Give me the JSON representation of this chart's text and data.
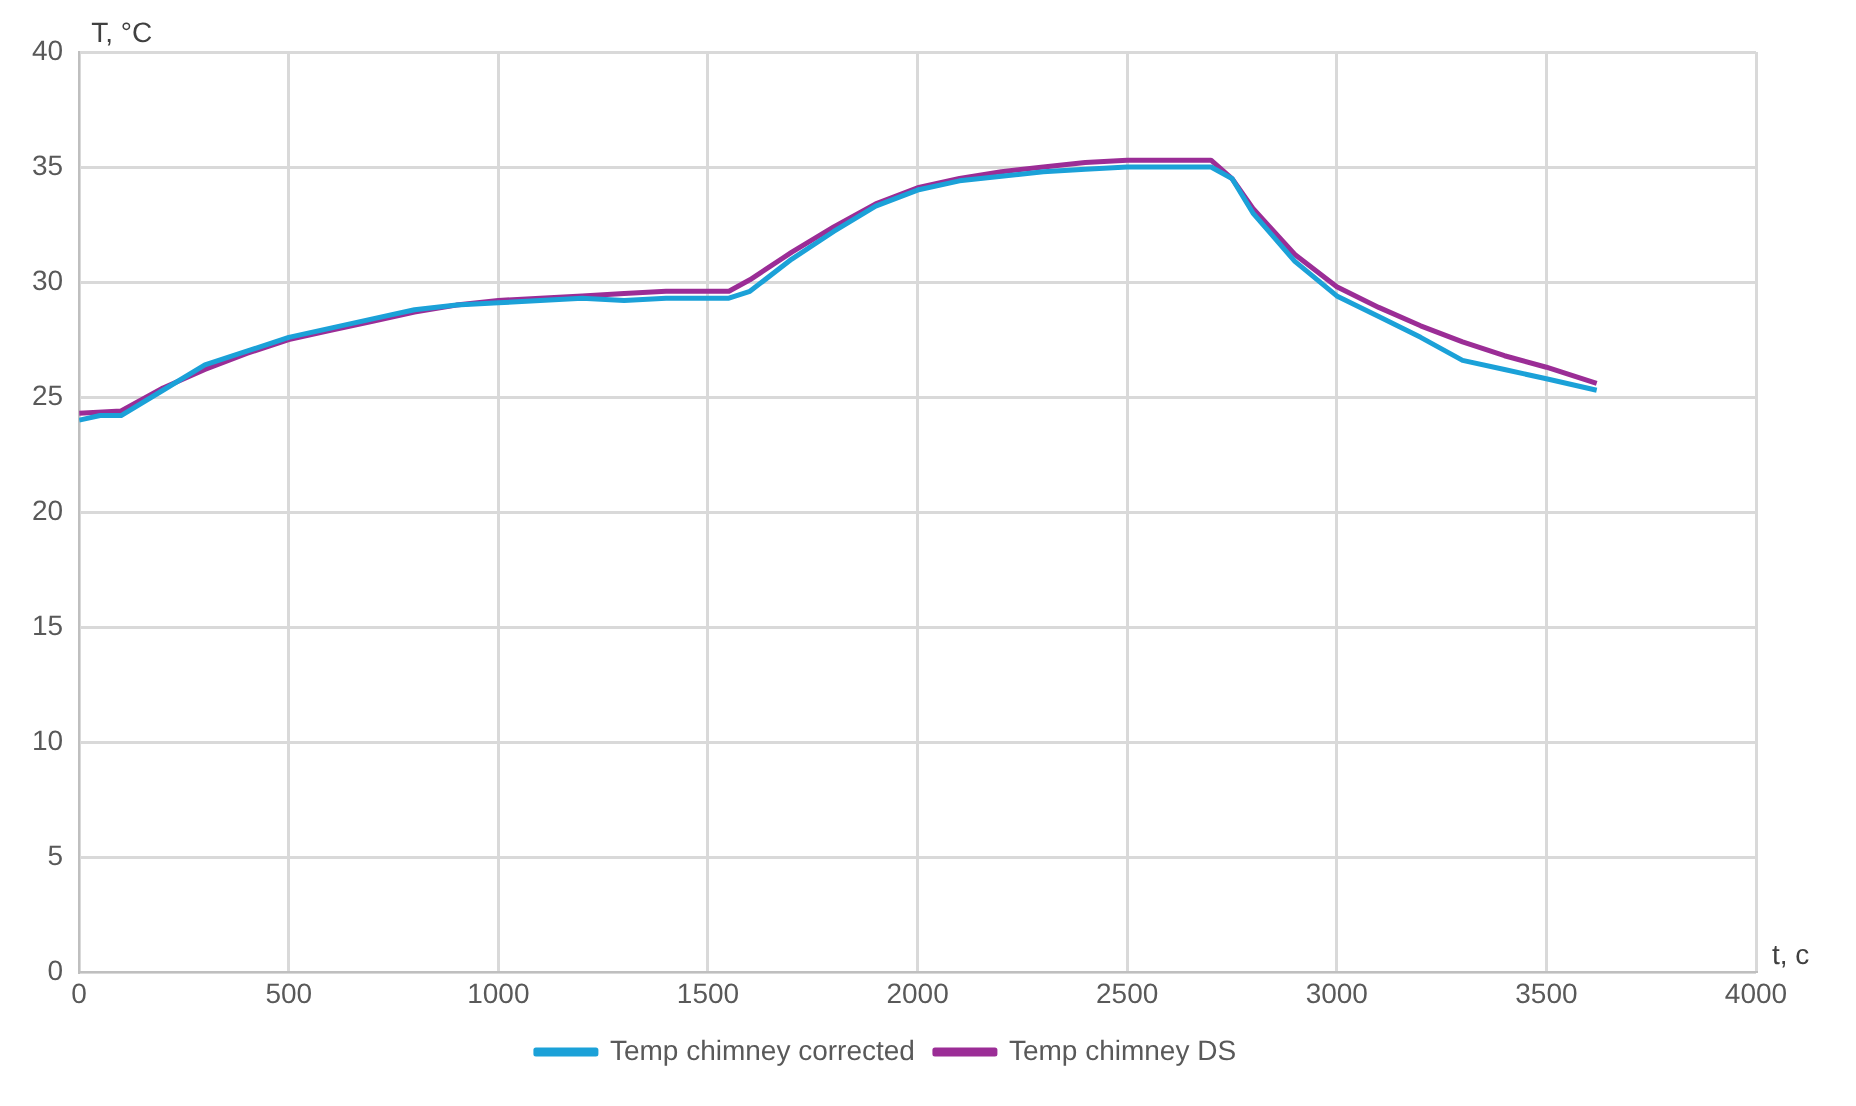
{
  "chart_data": {
    "type": "line",
    "xlabel": "t, c",
    "ylabel": "T, °C",
    "xlim": [
      0,
      4000
    ],
    "xticks": [
      0,
      500,
      1000,
      1500,
      2000,
      2500,
      3000,
      3500,
      4000
    ],
    "ylim": [
      0,
      40
    ],
    "yticks": [
      0,
      5,
      10,
      15,
      20,
      25,
      30,
      35,
      40
    ],
    "grid": true,
    "legend": "bottom",
    "marker": "none",
    "line_style": "solid",
    "series": [
      {
        "name": "Temp chimney corrected",
        "color": "#1ba1d8",
        "x": [
          0,
          50,
          100,
          200,
          300,
          400,
          500,
          600,
          700,
          800,
          900,
          1000,
          1100,
          1200,
          1300,
          1400,
          1550,
          1600,
          1700,
          1800,
          1900,
          2000,
          2100,
          2200,
          2300,
          2400,
          2500,
          2600,
          2700,
          2750,
          2800,
          2900,
          3000,
          3100,
          3200,
          3300,
          3400,
          3500,
          3620
        ],
        "values": [
          24.0,
          24.2,
          24.2,
          25.3,
          26.4,
          27.0,
          27.6,
          28.0,
          28.4,
          28.8,
          29.0,
          29.1,
          29.2,
          29.3,
          29.2,
          29.3,
          29.3,
          29.6,
          31.0,
          32.2,
          33.3,
          34.0,
          34.4,
          34.6,
          34.8,
          34.9,
          35.0,
          35.0,
          35.0,
          34.5,
          33.0,
          30.9,
          29.4,
          28.5,
          27.6,
          26.6,
          26.2,
          25.8,
          25.3
        ]
      },
      {
        "name": "Temp chimney DS",
        "color": "#9b2d96",
        "x": [
          0,
          100,
          200,
          300,
          400,
          500,
          600,
          700,
          800,
          900,
          1000,
          1100,
          1200,
          1300,
          1400,
          1550,
          1600,
          1700,
          1800,
          1900,
          2000,
          2100,
          2200,
          2300,
          2400,
          2500,
          2600,
          2700,
          2750,
          2800,
          2900,
          3000,
          3100,
          3200,
          3300,
          3400,
          3500,
          3620
        ],
        "values": [
          24.3,
          24.4,
          25.4,
          26.2,
          26.9,
          27.5,
          27.9,
          28.3,
          28.7,
          29.0,
          29.2,
          29.3,
          29.4,
          29.5,
          29.6,
          29.6,
          30.1,
          31.3,
          32.4,
          33.4,
          34.1,
          34.5,
          34.8,
          35.0,
          35.2,
          35.3,
          35.3,
          35.3,
          34.5,
          33.2,
          31.2,
          29.8,
          28.9,
          28.1,
          27.4,
          26.8,
          26.3,
          25.6
        ]
      }
    ]
  }
}
